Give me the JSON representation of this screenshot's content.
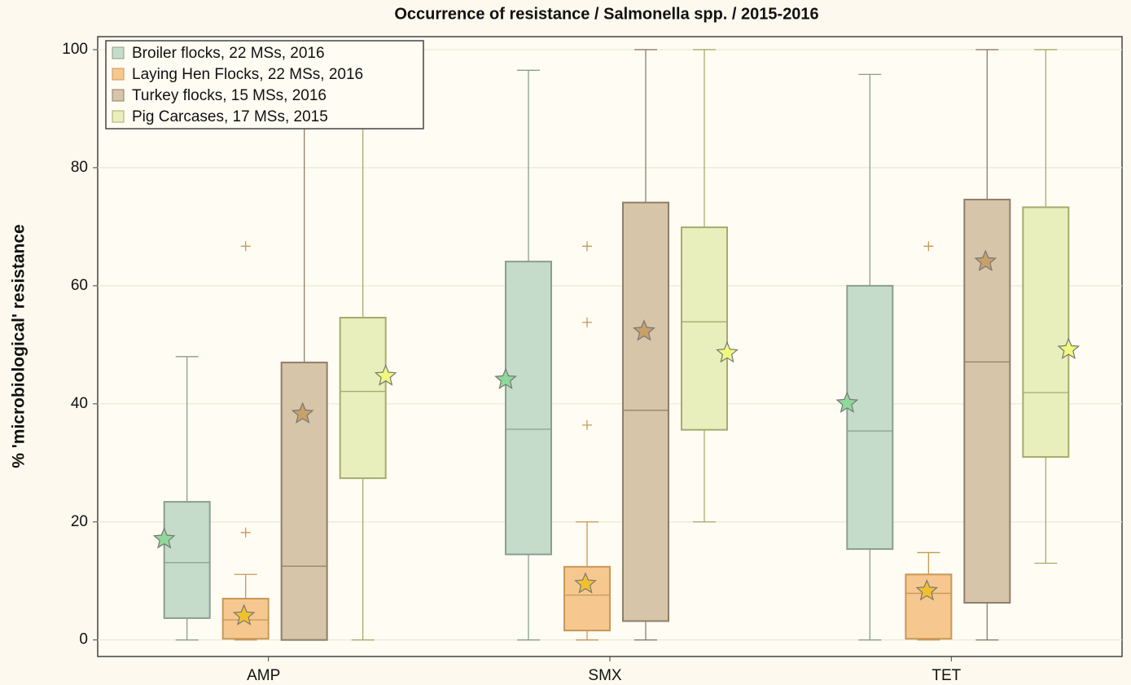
{
  "chart_data": {
    "type": "box",
    "title": "Occurrence of resistance / Salmonella spp. / 2015-2016",
    "y_label": "% 'microbiological' resistance",
    "categories": [
      "AMP",
      "SMX",
      "TET"
    ],
    "ylim": [
      -2.8,
      102.2
    ],
    "yticks": [
      0,
      20,
      40,
      60,
      80,
      100
    ],
    "grid": true,
    "legend": "upper left",
    "series": [
      {
        "name": "Broiler flocks, 22 MSs, 2016",
        "color": "#c5dccb",
        "edge": "#8a9e90",
        "mean_color": "#8fd89a",
        "min": [
          0,
          0,
          0
        ],
        "q1": [
          3.7,
          14.5,
          15.4
        ],
        "median": [
          13.1,
          35.7,
          35.4
        ],
        "q3": [
          23.4,
          64.1,
          60
        ],
        "max": [
          48,
          96.5,
          95.8
        ],
        "mean": [
          17.1,
          44.1,
          40.1
        ],
        "outliers": [
          [],
          [],
          []
        ]
      },
      {
        "name": "Laying Hen Flocks, 22 MSs, 2016",
        "color": "#f6c890",
        "edge": "#c89858",
        "mean_color": "#f0c030",
        "min": [
          0,
          0,
          0
        ],
        "q1": [
          0.2,
          1.6,
          0.2
        ],
        "median": [
          3.4,
          7.6,
          7.9
        ],
        "q3": [
          7,
          12.4,
          11.1
        ],
        "max": [
          11.1,
          20,
          14.8
        ],
        "mean": [
          4.1,
          9.5,
          8.3
        ],
        "outliers": [
          [
            18.2,
            66.7
          ],
          [
            36.4,
            53.8,
            66.7
          ],
          [
            66.7
          ]
        ]
      },
      {
        "name": "Turkey flocks, 15 MSs, 2016",
        "color": "#d6c5a8",
        "edge": "#8f7e6a",
        "mean_color": "#c8a06a",
        "min": [
          0,
          0,
          0
        ],
        "q1": [
          0,
          3.2,
          6.3
        ],
        "median": [
          12.5,
          38.9,
          47.1
        ],
        "q3": [
          47,
          74.1,
          74.6
        ],
        "max": [
          100,
          100,
          100
        ],
        "mean": [
          38.3,
          52.3,
          64.1
        ],
        "outliers": [
          [],
          [],
          []
        ]
      },
      {
        "name": "Pig Carcases, 17 MSs, 2015",
        "color": "#e8efbc",
        "edge": "#a5ac6c",
        "mean_color": "#f0f880",
        "min": [
          0,
          20,
          13
        ],
        "q1": [
          27.4,
          35.6,
          31
        ],
        "median": [
          42.1,
          53.9,
          41.9
        ],
        "q3": [
          54.6,
          69.9,
          73.3
        ],
        "max": [
          88,
          100,
          100
        ],
        "mean": [
          44.7,
          48.6,
          49.2
        ],
        "outliers": [
          [],
          [],
          []
        ]
      }
    ]
  }
}
